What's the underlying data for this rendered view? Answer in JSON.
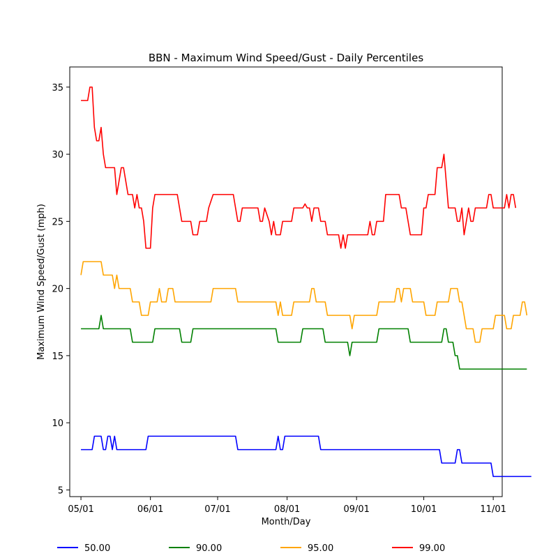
{
  "chart_data": {
    "type": "line",
    "title": "BBN - Maximum Wind Speed/Gust - Daily Percentiles",
    "xlabel": "Month/Day",
    "ylabel": "Maximum Wind Speed/Gust (mph)",
    "x_tick_labels": [
      "05/01",
      "06/01",
      "07/01",
      "08/01",
      "09/01",
      "10/01",
      "11/01"
    ],
    "y_ticks": [
      5,
      10,
      15,
      20,
      25,
      30,
      35
    ],
    "xlim": [
      "04/26",
      "11/05"
    ],
    "ylim": [
      4.5,
      36.5
    ],
    "grid": false,
    "legend_position": "bottom-center",
    "x_start": "05/01",
    "series": [
      {
        "name": "50.00",
        "color": "#0000ff",
        "values": [
          8,
          8,
          8,
          8,
          8,
          8,
          9,
          9,
          9,
          9,
          8,
          8,
          9,
          9,
          8,
          9,
          8,
          8,
          8,
          8,
          8,
          8,
          8,
          8,
          8,
          8,
          8,
          8,
          8,
          8,
          9,
          9,
          9,
          9,
          9,
          9,
          9,
          9,
          9,
          9,
          9,
          9,
          9,
          9,
          9,
          9,
          9,
          9,
          9,
          9,
          9,
          9,
          9,
          9,
          9,
          9,
          9,
          9,
          9,
          9,
          9,
          9,
          9,
          9,
          9,
          9,
          9,
          9,
          9,
          9,
          8,
          8,
          8,
          8,
          8,
          8,
          8,
          8,
          8,
          8,
          8,
          8,
          8,
          8,
          8,
          8,
          8,
          8,
          9,
          8,
          8,
          9,
          9,
          9,
          9,
          9,
          9,
          9,
          9,
          9,
          9,
          9,
          9,
          9,
          9,
          9,
          9,
          8,
          8,
          8,
          8,
          8,
          8,
          8,
          8,
          8,
          8,
          8,
          8,
          8,
          8,
          8,
          8,
          8,
          8,
          8,
          8,
          8,
          8,
          8,
          8,
          8,
          8,
          8,
          8,
          8,
          8,
          8,
          8,
          8,
          8,
          8,
          8,
          8,
          8,
          8,
          8,
          8,
          8,
          8,
          8,
          8,
          8,
          8,
          8,
          8,
          8,
          8,
          8,
          8,
          8,
          7,
          7,
          7,
          7,
          7,
          7,
          7,
          8,
          8,
          7,
          7,
          7,
          7,
          7,
          7,
          7,
          7,
          7,
          7,
          7,
          7,
          7,
          7,
          6,
          6,
          6,
          6,
          6,
          6,
          6,
          6,
          6,
          6,
          6,
          6,
          6,
          6,
          6,
          6,
          6,
          6
        ]
      },
      {
        "name": "90.00",
        "color": "#008000",
        "values": [
          17,
          17,
          17,
          17,
          17,
          17,
          17,
          17,
          17,
          18,
          17,
          17,
          17,
          17,
          17,
          17,
          17,
          17,
          17,
          17,
          17,
          17,
          17,
          16,
          16,
          16,
          16,
          16,
          16,
          16,
          16,
          16,
          16,
          17,
          17,
          17,
          17,
          17,
          17,
          17,
          17,
          17,
          17,
          17,
          17,
          16,
          16,
          16,
          16,
          16,
          17,
          17,
          17,
          17,
          17,
          17,
          17,
          17,
          17,
          17,
          17,
          17,
          17,
          17,
          17,
          17,
          17,
          17,
          17,
          17,
          17,
          17,
          17,
          17,
          17,
          17,
          17,
          17,
          17,
          17,
          17,
          17,
          17,
          17,
          17,
          17,
          17,
          17,
          16,
          16,
          16,
          16,
          16,
          16,
          16,
          16,
          16,
          16,
          16,
          17,
          17,
          17,
          17,
          17,
          17,
          17,
          17,
          17,
          17,
          16,
          16,
          16,
          16,
          16,
          16,
          16,
          16,
          16,
          16,
          16,
          15,
          16,
          16,
          16,
          16,
          16,
          16,
          16,
          16,
          16,
          16,
          16,
          16,
          17,
          17,
          17,
          17,
          17,
          17,
          17,
          17,
          17,
          17,
          17,
          17,
          17,
          17,
          16,
          16,
          16,
          16,
          16,
          16,
          16,
          16,
          16,
          16,
          16,
          16,
          16,
          16,
          16,
          17,
          17,
          16,
          16,
          16,
          15,
          15,
          14,
          14,
          14,
          14,
          14,
          14,
          14,
          14,
          14,
          14,
          14,
          14,
          14,
          14,
          14,
          14,
          14,
          14,
          14,
          14,
          14,
          14,
          14,
          14,
          14,
          14,
          14,
          14,
          14,
          14,
          14
        ]
      },
      {
        "name": "95.00",
        "color": "#ffa500",
        "values": [
          21,
          22,
          22,
          22,
          22,
          22,
          22,
          22,
          22,
          22,
          21,
          21,
          21,
          21,
          21,
          20,
          21,
          20,
          20,
          20,
          20,
          20,
          20,
          19,
          19,
          19,
          19,
          18,
          18,
          18,
          18,
          19,
          19,
          19,
          19,
          20,
          19,
          19,
          19,
          20,
          20,
          20,
          19,
          19,
          19,
          19,
          19,
          19,
          19,
          19,
          19,
          19,
          19,
          19,
          19,
          19,
          19,
          19,
          19,
          20,
          20,
          20,
          20,
          20,
          20,
          20,
          20,
          20,
          20,
          20,
          19,
          19,
          19,
          19,
          19,
          19,
          19,
          19,
          19,
          19,
          19,
          19,
          19,
          19,
          19,
          19,
          19,
          19,
          18,
          19,
          18,
          18,
          18,
          18,
          18,
          19,
          19,
          19,
          19,
          19,
          19,
          19,
          19,
          20,
          20,
          19,
          19,
          19,
          19,
          19,
          18,
          18,
          18,
          18,
          18,
          18,
          18,
          18,
          18,
          18,
          18,
          17,
          18,
          18,
          18,
          18,
          18,
          18,
          18,
          18,
          18,
          18,
          18,
          19,
          19,
          19,
          19,
          19,
          19,
          19,
          19,
          20,
          20,
          19,
          20,
          20,
          20,
          20,
          19,
          19,
          19,
          19,
          19,
          19,
          18,
          18,
          18,
          18,
          18,
          19,
          19,
          19,
          19,
          19,
          19,
          20,
          20,
          20,
          20,
          19,
          19,
          18,
          17,
          17,
          17,
          17,
          16,
          16,
          16,
          17,
          17,
          17,
          17,
          17,
          17,
          18,
          18,
          18,
          18,
          18,
          17,
          17,
          17,
          18,
          18,
          18,
          18,
          19,
          19,
          18
        ]
      },
      {
        "name": "99.00",
        "color": "#ff0000",
        "values": [
          34,
          34,
          34,
          34,
          35,
          35,
          32,
          31,
          31,
          32,
          30,
          29,
          29,
          29,
          29,
          29,
          27,
          28,
          29,
          29,
          28,
          27,
          27,
          27,
          26,
          27,
          26,
          26,
          25,
          23,
          23,
          23,
          26,
          27,
          27,
          27,
          27,
          27,
          27,
          27,
          27,
          27,
          27,
          27,
          26,
          25,
          25,
          25,
          25,
          25,
          24,
          24,
          24,
          25,
          25,
          25,
          25,
          26,
          26.5,
          27,
          27,
          27,
          27,
          27,
          27,
          27,
          27,
          27,
          27,
          26,
          25,
          25,
          26,
          26,
          26,
          26,
          26,
          26,
          26,
          26,
          25,
          25,
          26,
          25.5,
          25,
          24,
          25,
          24,
          24,
          24,
          25,
          25,
          25,
          25,
          25,
          26,
          26,
          26,
          26,
          26,
          26.3,
          26,
          26,
          25,
          26,
          26,
          26,
          25,
          25,
          25,
          24,
          24,
          24,
          24,
          24,
          24,
          23,
          24,
          23,
          24,
          24,
          24,
          24,
          24,
          24,
          24,
          24,
          24,
          24,
          25,
          24,
          24,
          25,
          25,
          25,
          25,
          27,
          27,
          27,
          27,
          27,
          27,
          27,
          26,
          26,
          26,
          25,
          24,
          24,
          24,
          24,
          24,
          24,
          26,
          26,
          27,
          27,
          27,
          27,
          29,
          29,
          29,
          30,
          28,
          26,
          26,
          26,
          26,
          25,
          25,
          26,
          24,
          25,
          26,
          25,
          25,
          26,
          26,
          26,
          26,
          26,
          26,
          27,
          27,
          26,
          26,
          26,
          26,
          26,
          26,
          27,
          26,
          27,
          27,
          26
        ]
      }
    ]
  }
}
